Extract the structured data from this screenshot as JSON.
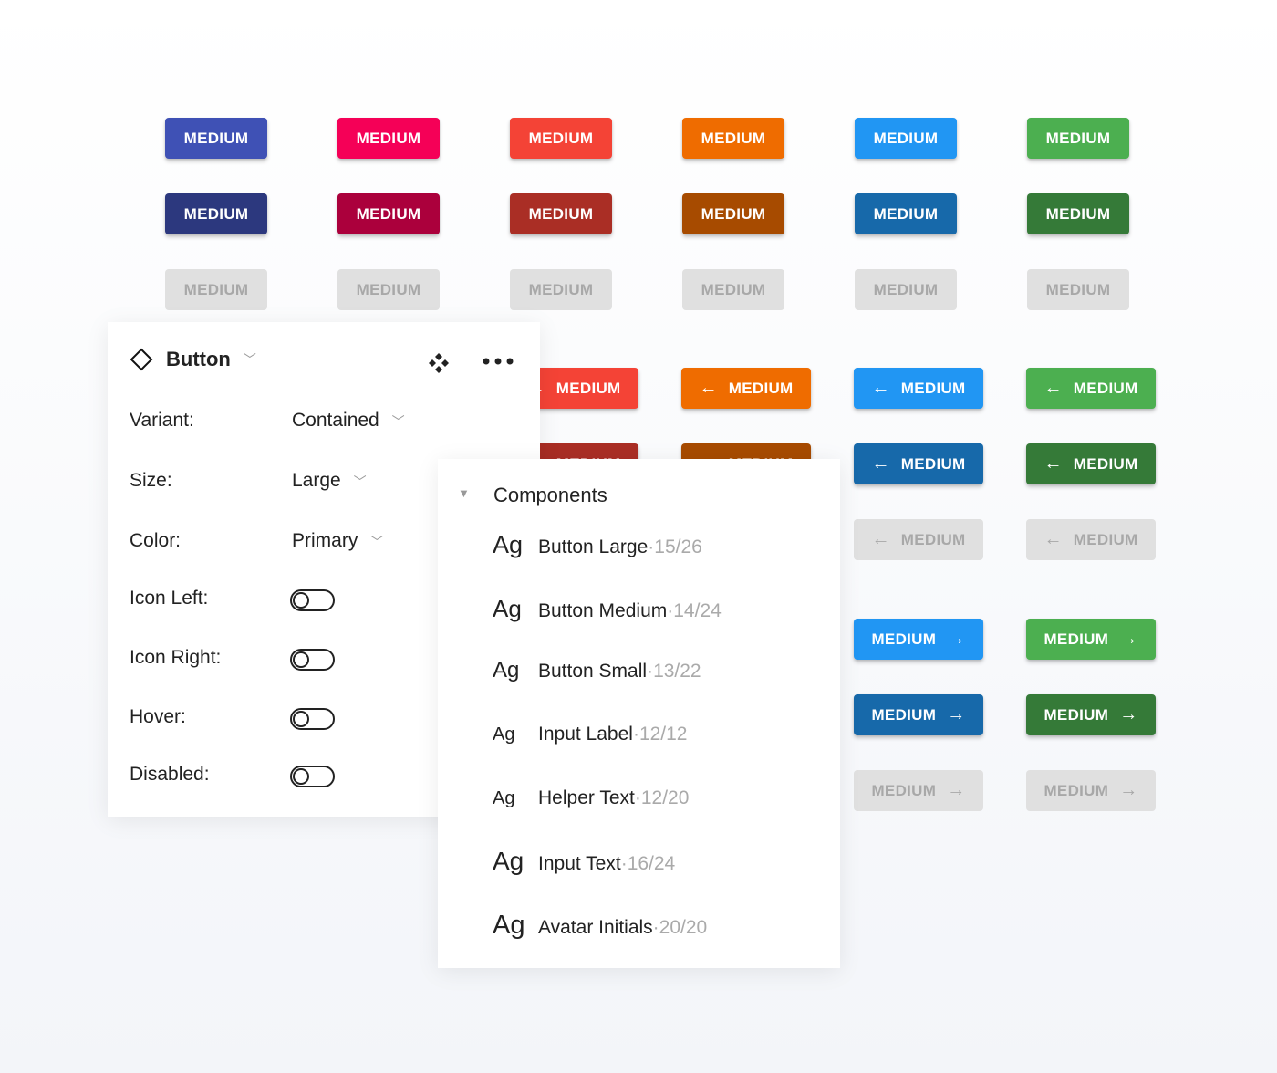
{
  "colors": {
    "indigo": "#3f51b5",
    "indigo_dark": "#2c387e",
    "pink": "#f50057",
    "pink_dark": "#ab003c",
    "red": "#f44336",
    "red_dark": "#aa2e25",
    "orange": "#ef6c00",
    "orange_dark": "#a74b00",
    "blue": "#2196f3",
    "blue_dark": "#1769aa",
    "green": "#4caf50",
    "green_dark": "#357a38",
    "disabled_bg": "#e0e0e0",
    "disabled_text": "#a8a8a8"
  },
  "button_label": "MEDIUM",
  "grid_plain": [
    [
      "#3f51b5",
      "#f50057",
      "#f44336",
      "#ef6c00",
      "#2196f3",
      "#4caf50"
    ],
    [
      "#2c387e",
      "#ab003c",
      "#aa2e25",
      "#a74b00",
      "#1769aa",
      "#357a38"
    ],
    [
      "disabled",
      "disabled",
      "disabled",
      "disabled",
      "disabled",
      "disabled"
    ]
  ],
  "grid_icon_left": [
    [
      "#f44336",
      "#ef6c00",
      "#2196f3",
      "#4caf50"
    ],
    [
      "#aa2e25",
      "#a74b00",
      "#1769aa",
      "#357a38"
    ],
    [
      null,
      null,
      "disabled",
      "disabled"
    ]
  ],
  "grid_icon_right": [
    [
      "#2196f3",
      "#4caf50"
    ],
    [
      "#1769aa",
      "#357a38"
    ],
    [
      "disabled",
      "disabled"
    ]
  ],
  "properties": {
    "title": "Button",
    "rows": [
      {
        "label": "Variant:",
        "value": "Contained",
        "type": "select"
      },
      {
        "label": "Size:",
        "value": "Large",
        "type": "select"
      },
      {
        "label": "Color:",
        "value": "Primary",
        "type": "select"
      },
      {
        "label": "Icon Left:",
        "value": false,
        "type": "toggle"
      },
      {
        "label": "Icon Right:",
        "value": false,
        "type": "toggle"
      },
      {
        "label": "Hover:",
        "value": false,
        "type": "toggle"
      },
      {
        "label": "Disabled:",
        "value": false,
        "type": "toggle"
      }
    ]
  },
  "components": {
    "title": "Components",
    "items": [
      {
        "sample": "Ag",
        "name": "Button Large",
        "metrics": "15/26"
      },
      {
        "sample": "Ag",
        "name": "Button Medium",
        "metrics": "14/24"
      },
      {
        "sample": "Ag",
        "name": "Button Small",
        "metrics": "13/22"
      },
      {
        "sample": "Ag",
        "name": "Input Label",
        "metrics": "12/12"
      },
      {
        "sample": "Ag",
        "name": "Helper Text",
        "metrics": "12/20"
      },
      {
        "sample": "Ag",
        "name": "Input Text",
        "metrics": "16/24"
      },
      {
        "sample": "Ag",
        "name": "Avatar Initials",
        "metrics": "20/20"
      }
    ]
  }
}
